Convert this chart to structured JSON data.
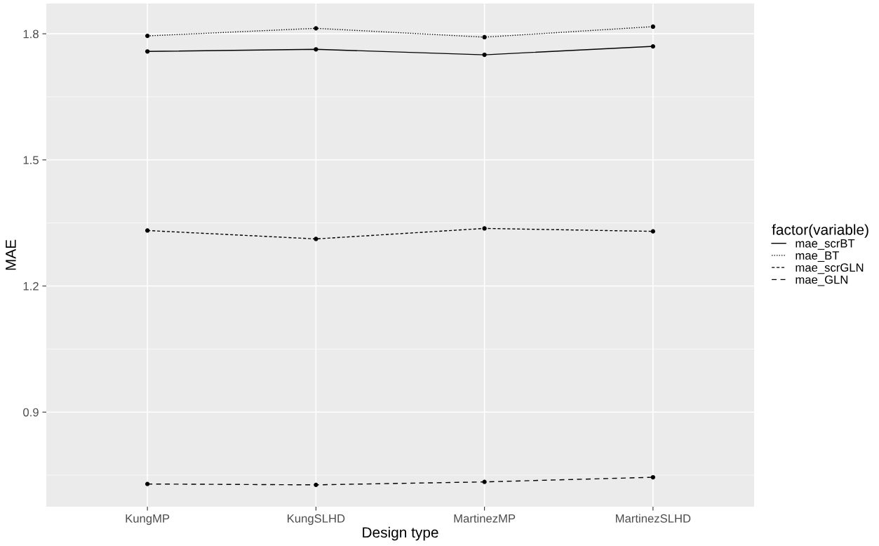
{
  "chart_data": {
    "type": "line",
    "xlabel": "Design type",
    "ylabel": "MAE",
    "legend_title": "factor(variable)",
    "categories": [
      "KungMP",
      "KungSLHD",
      "MartinezMP",
      "MartinezSLHD"
    ],
    "series": [
      {
        "name": "mae_scrBT",
        "color": "#000000",
        "line_style": "solid",
        "values": [
          1.758,
          1.763,
          1.75,
          1.77
        ]
      },
      {
        "name": "mae_BT",
        "color": "#000000",
        "line_style": "dotted",
        "values": [
          1.795,
          1.813,
          1.792,
          1.817
        ]
      },
      {
        "name": "mae_scrGLN",
        "color": "#000000",
        "line_style": "dashed",
        "values": [
          1.332,
          1.312,
          1.337,
          1.33
        ]
      },
      {
        "name": "mae_GLN",
        "color": "#000000",
        "line_style": "longdash",
        "values": [
          0.729,
          0.727,
          0.734,
          0.745
        ]
      }
    ],
    "ylim": [
      0.675,
      1.872
    ],
    "yticks": [
      0.9,
      1.2,
      1.5,
      1.8
    ],
    "grid": true,
    "legend": "right",
    "marker": "circle"
  }
}
